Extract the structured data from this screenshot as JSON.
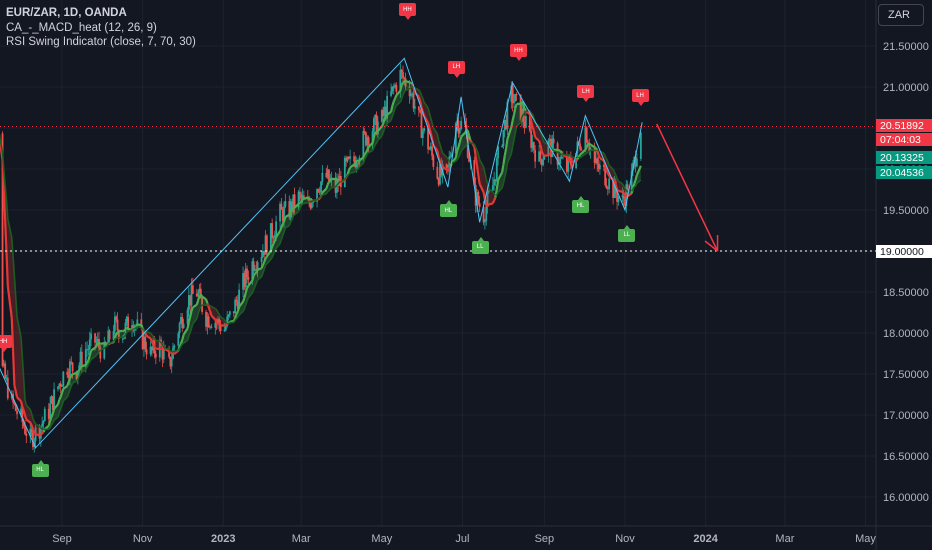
{
  "legend": {
    "symbol": "EUR/ZAR, 1D, OANDA",
    "indicator1": "CA_-_MACD_heat (12, 26, 9)",
    "indicator2": "RSI Swing Indicator (close, 7, 70, 30)"
  },
  "currency_button": "ZAR",
  "price_tags": {
    "last_price": "20.51892",
    "countdown": "07:04:03",
    "ma_fast": "20.13325",
    "ma_slow": "20.04536",
    "level": "19.00000"
  },
  "colors": {
    "background": "#131722",
    "bull": "#26a69a",
    "bear": "#ef5350",
    "swing_line": "#4fc3f7",
    "projection_arrow": "#f23645",
    "ma_green": "#4caf50",
    "ma_red": "#e53935"
  },
  "signals": [
    {
      "type": "sell",
      "text": "HH",
      "date": "2022-07-18",
      "price": 17.9
    },
    {
      "type": "buy",
      "text": "HL",
      "date": "2022-08-15",
      "price": 16.33
    },
    {
      "type": "sell",
      "text": "HH",
      "date": "2023-05-20",
      "price": 21.95
    },
    {
      "type": "buy",
      "text": "HL",
      "date": "2023-06-20",
      "price": 19.5
    },
    {
      "type": "sell",
      "text": "LH",
      "date": "2023-06-26",
      "price": 21.25
    },
    {
      "type": "buy",
      "text": "LL",
      "date": "2023-07-14",
      "price": 19.05
    },
    {
      "type": "sell",
      "text": "HH",
      "date": "2023-08-12",
      "price": 21.45
    },
    {
      "type": "buy",
      "text": "HL",
      "date": "2023-09-28",
      "price": 19.55
    },
    {
      "type": "sell",
      "text": "LH",
      "date": "2023-10-02",
      "price": 20.95
    },
    {
      "type": "buy",
      "text": "LL",
      "date": "2023-11-02",
      "price": 19.2
    },
    {
      "type": "sell",
      "text": "LH",
      "date": "2023-11-12",
      "price": 20.9
    }
  ],
  "chart_data": {
    "type": "candlestick",
    "symbol": "EUR/ZAR",
    "timeframe": "1D",
    "x_labels": [
      "Sep",
      "Nov",
      "2023",
      "Mar",
      "May",
      "Jul",
      "Sep",
      "Nov",
      "2024",
      "Mar",
      "May"
    ],
    "x_label_dates": [
      "2022-09-01",
      "2022-11-01",
      "2023-01-01",
      "2023-03-01",
      "2023-05-01",
      "2023-07-01",
      "2023-09-01",
      "2023-11-01",
      "2024-01-01",
      "2024-03-01",
      "2024-05-01"
    ],
    "y_ticks": [
      "16.00000",
      "16.50000",
      "17.00000",
      "17.50000",
      "18.00000",
      "18.50000",
      "19.00000",
      "19.50000",
      "20.00000",
      "20.50000",
      "21.00000",
      "21.50000"
    ],
    "ylim": [
      15.7,
      22.1
    ],
    "swing_path": [
      [
        "2022-07-15",
        17.6
      ],
      [
        "2022-08-12",
        16.6
      ],
      [
        "2023-05-18",
        21.35
      ],
      [
        "2023-06-20",
        19.78
      ],
      [
        "2023-06-30",
        20.88
      ],
      [
        "2023-07-14",
        19.35
      ],
      [
        "2023-08-08",
        21.05
      ],
      [
        "2023-09-20",
        19.85
      ],
      [
        "2023-10-02",
        20.65
      ],
      [
        "2023-11-01",
        19.5
      ],
      [
        "2023-11-14",
        20.57
      ]
    ],
    "projection": {
      "from": [
        "2023-11-25",
        20.55
      ],
      "to": [
        "2024-01-10",
        19.0
      ]
    },
    "level_line": 19.0,
    "last_price": 20.51892,
    "candles": [
      [
        "2022-07-18",
        17.55
      ],
      [
        "2022-07-25",
        17.15
      ],
      [
        "2022-08-01",
        16.95
      ],
      [
        "2022-08-08",
        16.7
      ],
      [
        "2022-08-15",
        16.85
      ],
      [
        "2022-08-22",
        17.05
      ],
      [
        "2022-08-29",
        17.35
      ],
      [
        "2022-09-05",
        17.6
      ],
      [
        "2022-09-12",
        17.55
      ],
      [
        "2022-09-19",
        17.8
      ],
      [
        "2022-09-26",
        17.9
      ],
      [
        "2022-10-03",
        17.75
      ],
      [
        "2022-10-10",
        18.1
      ],
      [
        "2022-10-17",
        18.0
      ],
      [
        "2022-10-24",
        18.2
      ],
      [
        "2022-10-31",
        17.95
      ],
      [
        "2022-11-07",
        17.75
      ],
      [
        "2022-11-14",
        17.85
      ],
      [
        "2022-11-21",
        17.6
      ],
      [
        "2022-11-28",
        18.05
      ],
      [
        "2022-12-05",
        18.4
      ],
      [
        "2022-12-12",
        18.5
      ],
      [
        "2022-12-19",
        18.2
      ],
      [
        "2022-12-26",
        18.15
      ],
      [
        "2023-01-02",
        18.05
      ],
      [
        "2023-01-09",
        18.3
      ],
      [
        "2023-01-16",
        18.6
      ],
      [
        "2023-01-23",
        18.85
      ],
      [
        "2023-01-30",
        19.0
      ],
      [
        "2023-02-06",
        19.2
      ],
      [
        "2023-02-13",
        19.45
      ],
      [
        "2023-02-20",
        19.5
      ],
      [
        "2023-02-27",
        19.65
      ],
      [
        "2023-03-06",
        19.55
      ],
      [
        "2023-03-13",
        19.8
      ],
      [
        "2023-03-20",
        19.9
      ],
      [
        "2023-03-27",
        19.75
      ],
      [
        "2023-04-03",
        20.0
      ],
      [
        "2023-04-10",
        20.1
      ],
      [
        "2023-04-17",
        20.35
      ],
      [
        "2023-04-24",
        20.5
      ],
      [
        "2023-05-01",
        20.6
      ],
      [
        "2023-05-08",
        20.9
      ],
      [
        "2023-05-15",
        21.15
      ],
      [
        "2023-05-22",
        21.0
      ],
      [
        "2023-05-29",
        20.6
      ],
      [
        "2023-06-05",
        20.3
      ],
      [
        "2023-06-12",
        19.95
      ],
      [
        "2023-06-19",
        19.9
      ],
      [
        "2023-06-26",
        20.6
      ],
      [
        "2023-07-03",
        20.5
      ],
      [
        "2023-07-10",
        19.7
      ],
      [
        "2023-07-17",
        19.45
      ],
      [
        "2023-07-24",
        19.8
      ],
      [
        "2023-07-31",
        20.4
      ],
      [
        "2023-08-07",
        20.9
      ],
      [
        "2023-08-14",
        20.7
      ],
      [
        "2023-08-21",
        20.4
      ],
      [
        "2023-08-28",
        20.1
      ],
      [
        "2023-09-04",
        20.3
      ],
      [
        "2023-09-11",
        20.15
      ],
      [
        "2023-09-18",
        20.0
      ],
      [
        "2023-09-25",
        20.2
      ],
      [
        "2023-10-02",
        20.5
      ],
      [
        "2023-10-09",
        20.05
      ],
      [
        "2023-10-16",
        19.95
      ],
      [
        "2023-10-23",
        19.75
      ],
      [
        "2023-10-30",
        19.6
      ],
      [
        "2023-11-06",
        19.9
      ],
      [
        "2023-11-13",
        20.52
      ]
    ]
  }
}
